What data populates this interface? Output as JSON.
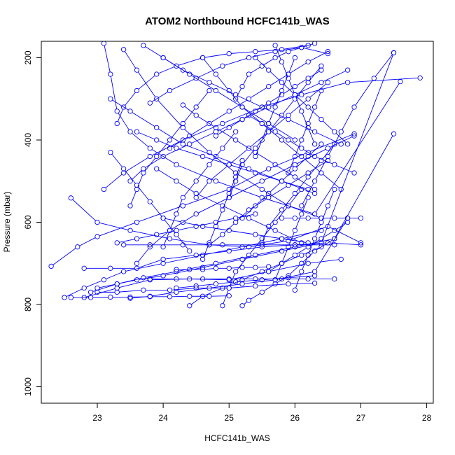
{
  "chart_data": {
    "type": "line",
    "title": "ATOM2 Northbound HCFC141b_WAS",
    "xlabel": "HCFC141b_WAS",
    "ylabel": "Pressure (mbar)",
    "xlim": [
      22.15,
      28.1
    ],
    "ylim": [
      1040,
      160
    ],
    "y_reversed": true,
    "xticks": [
      "23",
      "24",
      "25",
      "26",
      "27",
      "28"
    ],
    "yticks": [
      "200",
      "400",
      "600",
      "800",
      "1000"
    ],
    "grid": false,
    "marker": "open-circle",
    "color": "#0000ff",
    "series": [
      {
        "x": [
          22.3,
          22.7,
          23.0,
          23.6,
          24.3,
          25.0,
          25.6,
          26.2,
          26.9
        ],
        "y": [
          707,
          660,
          635,
          600,
          560,
          520,
          470,
          430,
          385
        ]
      },
      {
        "x": [
          22.5,
          22.8,
          23.1,
          23.4,
          24.0,
          24.6,
          25.2,
          25.8,
          26.4
        ],
        "y": [
          783,
          760,
          740,
          720,
          700,
          680,
          660,
          640,
          620
        ]
      },
      {
        "x": [
          22.6,
          23.0,
          23.5,
          24.1,
          24.7,
          25.3,
          25.9,
          26.5,
          27.0
        ],
        "y": [
          541,
          600,
          620,
          640,
          655,
          660,
          645,
          610,
          650
        ]
      },
      {
        "x": [
          22.8,
          23.2,
          23.6,
          24.0,
          24.5,
          25.0,
          25.5,
          26.0,
          26.5,
          27.0
        ],
        "y": [
          712,
          712,
          712,
          690,
          680,
          670,
          660,
          655,
          650,
          655
        ]
      },
      {
        "x": [
          22.8,
          23.3,
          23.8,
          24.4,
          25.0,
          25.6,
          26.2,
          26.7
        ],
        "y": [
          783,
          760,
          740,
          738,
          740,
          720,
          700,
          690
        ]
      },
      {
        "x": [
          22.9,
          23.3,
          23.7,
          24.2,
          24.8,
          25.4,
          26.0,
          26.6,
          27.5
        ],
        "y": [
          770,
          750,
          735,
          720,
          700,
          680,
          660,
          640,
          385
        ]
      },
      {
        "x": [
          23.0,
          23.3,
          23.6,
          24.0,
          24.6,
          25.2,
          25.8,
          26.4,
          27.5
        ],
        "y": [
          760,
          750,
          740,
          730,
          710,
          690,
          670,
          650,
          188
        ]
      },
      {
        "x": [
          23.1,
          23.2,
          23.3,
          23.5,
          23.8,
          24.2,
          24.8,
          25.5,
          26.3,
          27.6
        ],
        "y": [
          165,
          240,
          330,
          380,
          420,
          460,
          500,
          540,
          580,
          258
        ]
      },
      {
        "x": [
          23.1,
          23.4,
          23.8,
          24.3,
          24.9,
          25.5,
          26.1,
          26.8,
          27.9
        ],
        "y": [
          520,
          480,
          440,
          400,
          360,
          320,
          290,
          260,
          249
        ]
      },
      {
        "x": [
          23.2,
          23.5,
          23.9,
          24.3,
          24.8,
          25.3,
          25.8,
          26.3
        ],
        "y": [
          300,
          330,
          370,
          410,
          440,
          470,
          500,
          530
        ]
      },
      {
        "x": [
          23.3,
          23.4,
          23.6,
          23.9,
          24.2,
          24.6,
          25.0,
          25.4,
          25.8,
          26.2
        ],
        "y": [
          360,
          320,
          280,
          240,
          220,
          200,
          190,
          185,
          180,
          170
        ]
      },
      {
        "x": [
          23.4,
          23.6,
          23.9,
          24.3,
          24.7,
          25.1,
          25.5,
          25.9,
          26.4
        ],
        "y": [
          180,
          230,
          300,
          370,
          430,
          480,
          520,
          560,
          590
        ]
      },
      {
        "x": [
          23.4,
          23.8,
          24.3,
          24.9,
          25.5,
          26.0,
          26.6
        ],
        "y": [
          655,
          655,
          655,
          655,
          655,
          655,
          655
        ]
      },
      {
        "x": [
          23.5,
          23.8,
          24.2,
          24.7,
          25.2,
          25.7,
          26.3,
          26.8
        ],
        "y": [
          785,
          780,
          770,
          760,
          750,
          740,
          720,
          590
        ]
      },
      {
        "x": [
          23.5,
          23.7,
          24.0,
          24.4,
          24.8,
          25.2,
          25.6,
          26.0,
          26.4,
          26.8
        ],
        "y": [
          500,
          470,
          440,
          410,
          380,
          350,
          320,
          290,
          260,
          230
        ]
      },
      {
        "x": [
          23.6,
          23.9,
          24.2,
          24.6,
          25.0,
          25.4,
          25.8,
          26.2
        ],
        "y": [
          380,
          400,
          420,
          440,
          460,
          480,
          500,
          520
        ]
      },
      {
        "x": [
          23.6,
          23.8,
          24.1,
          24.5,
          25.0,
          25.5,
          26.0,
          26.5,
          26.9
        ],
        "y": [
          700,
          660,
          620,
          580,
          540,
          500,
          460,
          420,
          390
        ]
      },
      {
        "x": [
          23.7,
          24.0,
          24.4,
          24.8,
          25.2,
          25.6,
          26.0
        ],
        "y": [
          170,
          200,
          240,
          280,
          320,
          360,
          400
        ]
      },
      {
        "x": [
          23.8,
          24.1,
          24.5,
          24.9,
          25.3,
          25.7,
          26.1,
          26.5
        ],
        "y": [
          310,
          280,
          250,
          220,
          200,
          185,
          175,
          190
        ]
      },
      {
        "x": [
          23.8,
          24.2,
          24.6,
          25.0,
          25.4,
          25.8,
          26.2,
          26.6
        ],
        "y": [
          738,
          738,
          738,
          738,
          738,
          738,
          738,
          738
        ]
      },
      {
        "x": [
          23.9,
          24.2,
          24.5,
          24.9,
          25.3,
          25.7,
          26.1
        ],
        "y": [
          470,
          500,
          530,
          560,
          590,
          620,
          650
        ]
      },
      {
        "x": [
          24.0,
          24.3,
          24.7,
          25.1,
          25.5,
          25.9,
          26.3,
          26.7
        ],
        "y": [
          200,
          230,
          260,
          290,
          320,
          350,
          380,
          410
        ]
      },
      {
        "x": [
          24.0,
          24.3,
          24.6,
          25.0,
          25.4,
          25.8,
          26.2
        ],
        "y": [
          590,
          600,
          610,
          620,
          630,
          640,
          650
        ]
      },
      {
        "x": [
          24.1,
          24.4,
          24.7,
          25.0,
          25.3,
          25.6,
          25.9,
          26.2,
          26.5
        ],
        "y": [
          420,
          390,
          360,
          330,
          300,
          270,
          240,
          210,
          185
        ]
      },
      {
        "x": [
          24.2,
          24.5,
          24.8,
          25.1,
          25.5,
          25.9,
          26.3
        ],
        "y": [
          760,
          755,
          750,
          745,
          740,
          735,
          730
        ]
      },
      {
        "x": [
          24.3,
          24.5,
          24.8,
          25.1,
          25.4,
          25.7,
          26.0,
          26.3
        ],
        "y": [
          315,
          340,
          370,
          400,
          430,
          460,
          490,
          520
        ]
      },
      {
        "x": [
          24.4,
          24.6,
          24.9,
          25.2,
          25.5,
          25.8,
          26.1,
          26.4
        ],
        "y": [
          803,
          780,
          760,
          740,
          720,
          700,
          680,
          660
        ]
      },
      {
        "x": [
          24.5,
          24.7,
          25.0,
          25.3,
          25.6,
          25.9,
          26.2,
          26.5
        ],
        "y": [
          540,
          500,
          460,
          420,
          380,
          340,
          300,
          260
        ]
      },
      {
        "x": [
          24.6,
          24.8,
          25.0,
          25.2,
          25.5,
          25.8,
          26.1,
          26.4,
          26.7
        ],
        "y": [
          200,
          240,
          280,
          320,
          360,
          400,
          440,
          480,
          520
        ]
      },
      {
        "x": [
          24.7,
          24.9,
          25.1,
          25.3,
          25.6,
          25.9,
          26.2,
          26.5
        ],
        "y": [
          655,
          630,
          600,
          570,
          540,
          510,
          480,
          450
        ]
      },
      {
        "x": [
          24.8,
          25.0,
          25.2,
          25.4,
          25.6,
          25.8,
          26.0,
          26.2,
          26.4
        ],
        "y": [
          390,
          370,
          350,
          330,
          310,
          290,
          270,
          250,
          230
        ]
      },
      {
        "x": [
          24.9,
          25.0,
          25.1,
          25.3,
          25.5,
          25.7,
          25.9,
          26.1
        ],
        "y": [
          803,
          760,
          720,
          680,
          640,
          600,
          560,
          520
        ]
      },
      {
        "x": [
          25.0,
          25.1,
          25.2,
          25.4,
          25.6,
          25.8,
          26.0,
          26.2,
          26.4
        ],
        "y": [
          540,
          500,
          460,
          420,
          380,
          340,
          300,
          260,
          220
        ]
      },
      {
        "x": [
          25.1,
          25.2,
          25.3,
          25.5,
          25.7,
          25.9,
          26.1,
          26.3
        ],
        "y": [
          300,
          270,
          240,
          220,
          200,
          185,
          175,
          165
        ]
      },
      {
        "x": [
          25.2,
          25.3,
          25.5,
          25.7,
          25.9,
          26.1,
          26.3,
          26.6
        ],
        "y": [
          803,
          790,
          770,
          750,
          730,
          700,
          670,
          640
        ]
      },
      {
        "x": [
          25.2,
          25.4,
          25.6,
          25.8,
          26.0,
          26.2,
          26.4
        ],
        "y": [
          590,
          560,
          530,
          500,
          470,
          440,
          410
        ]
      },
      {
        "x": [
          25.3,
          25.5,
          25.7,
          25.9,
          26.1,
          26.3,
          26.6,
          26.9
        ],
        "y": [
          340,
          360,
          380,
          400,
          420,
          440,
          460,
          480
        ]
      },
      {
        "x": [
          25.4,
          25.6,
          25.8,
          26.0,
          26.2,
          26.4,
          26.6,
          26.8
        ],
        "y": [
          200,
          230,
          260,
          290,
          320,
          350,
          380,
          410
        ]
      },
      {
        "x": [
          25.5,
          25.6,
          25.8,
          26.0,
          26.2,
          26.4,
          26.6
        ],
        "y": [
          650,
          610,
          570,
          530,
          490,
          450,
          410
        ]
      },
      {
        "x": [
          25.6,
          25.8,
          26.0,
          26.2,
          26.4,
          26.6,
          26.8
        ],
        "y": [
          720,
          700,
          680,
          660,
          640,
          620,
          600
        ]
      },
      {
        "x": [
          25.7,
          25.8,
          25.9,
          26.0,
          26.1,
          26.2,
          26.3
        ],
        "y": [
          170,
          210,
          250,
          290,
          330,
          370,
          410
        ]
      },
      {
        "x": [
          25.8,
          26.0,
          26.2,
          26.4,
          26.6,
          26.8,
          27.0
        ],
        "y": [
          590,
          590,
          590,
          590,
          590,
          590,
          590
        ]
      },
      {
        "x": [
          25.9,
          26.0,
          26.1,
          26.2,
          26.3,
          26.4
        ],
        "y": [
          480,
          440,
          400,
          360,
          320,
          280
        ]
      },
      {
        "x": [
          26.0,
          26.1,
          26.2,
          26.3,
          26.4,
          26.5,
          26.6
        ],
        "y": [
          765,
          720,
          680,
          640,
          600,
          560,
          520
        ]
      },
      {
        "x": [
          23.0,
          23.3,
          23.7,
          24.1,
          24.5,
          25.0,
          25.4,
          25.9,
          26.3
        ],
        "y": [
          770,
          770,
          765,
          765,
          760,
          760,
          755,
          750,
          748
        ]
      },
      {
        "x": [
          23.2,
          23.4,
          23.6,
          23.8,
          24.0,
          24.2,
          24.4
        ],
        "y": [
          430,
          470,
          510,
          550,
          590,
          630,
          670
        ]
      },
      {
        "x": [
          23.5,
          23.6,
          23.7,
          23.9,
          24.1,
          24.3,
          24.5,
          24.7
        ],
        "y": [
          560,
          520,
          480,
          440,
          400,
          360,
          320,
          280
        ]
      },
      {
        "x": [
          24.0,
          24.1,
          24.2,
          24.3,
          24.5,
          24.7,
          24.9,
          25.1
        ],
        "y": [
          660,
          620,
          580,
          540,
          500,
          460,
          420,
          380
        ]
      },
      {
        "x": [
          24.6,
          24.7,
          24.8,
          24.9,
          25.0,
          25.1,
          25.2
        ],
        "y": [
          690,
          650,
          610,
          570,
          530,
          490,
          450
        ]
      },
      {
        "x": [
          25.4,
          25.5,
          25.6,
          25.7,
          25.8,
          25.9,
          26.0
        ],
        "y": [
          440,
          400,
          360,
          320,
          280,
          240,
          200
        ]
      },
      {
        "x": [
          26.1,
          26.3,
          26.5,
          26.7,
          26.9,
          27.2,
          27.5
        ],
        "y": [
          560,
          500,
          440,
          380,
          320,
          250,
          188
        ]
      },
      {
        "x": [
          23.3,
          23.6,
          23.9,
          24.2,
          24.5,
          24.8,
          25.1,
          25.4
        ],
        "y": [
          650,
          640,
          630,
          620,
          610,
          600,
          590,
          580
        ]
      },
      {
        "x": [
          24.2,
          24.4,
          24.6,
          24.8,
          25.0,
          25.2,
          25.4,
          25.6
        ],
        "y": [
          715,
          715,
          715,
          712,
          712,
          710,
          710,
          708
        ]
      },
      {
        "x": [
          22.6,
          22.9,
          23.2,
          23.5,
          23.8,
          24.1,
          24.4,
          24.7,
          25.0
        ],
        "y": [
          783,
          783,
          782,
          782,
          781,
          781,
          780,
          780,
          779
        ]
      },
      {
        "x": [
          25.7,
          25.8,
          25.9,
          26.0,
          26.1,
          26.2
        ],
        "y": [
          740,
          700,
          660,
          620,
          580,
          540
        ]
      }
    ]
  }
}
